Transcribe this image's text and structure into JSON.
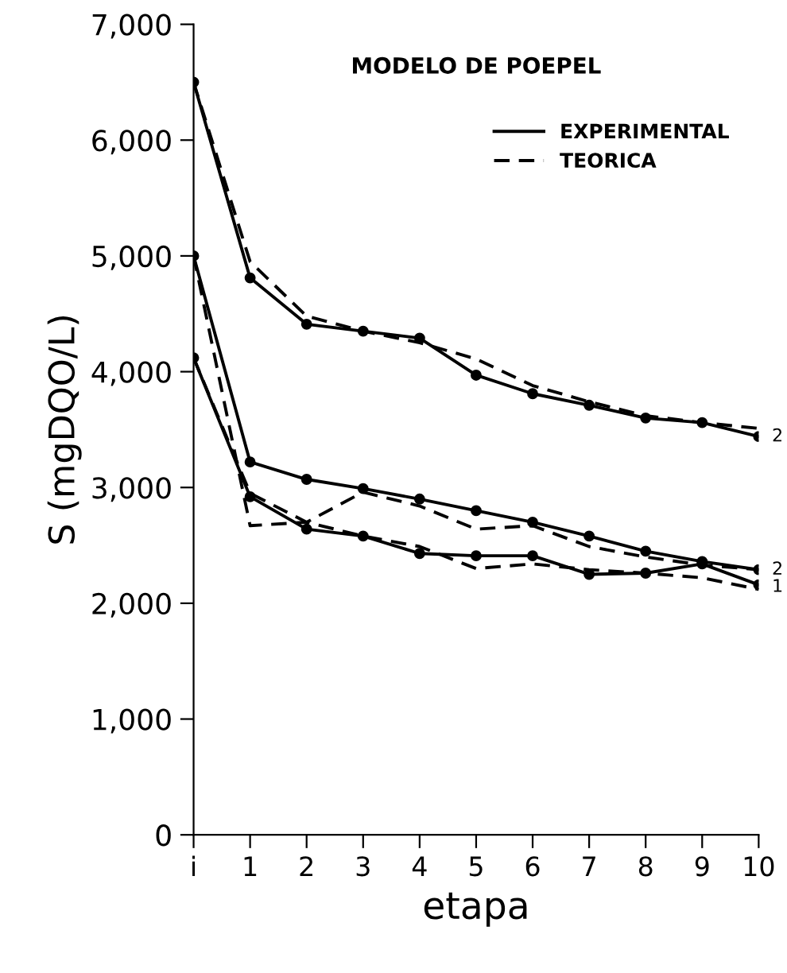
{
  "chart_data": {
    "type": "line",
    "title": "MODELO DE POEPEL",
    "xlabel": "etapa",
    "ylabel": "S (mgDQO/L)",
    "categories": [
      "i",
      "1",
      "2",
      "3",
      "4",
      "5",
      "6",
      "7",
      "8",
      "9",
      "10"
    ],
    "ylim": [
      0,
      7000
    ],
    "yticks": [
      {
        "value": 0,
        "label": "0"
      },
      {
        "value": 1000,
        "label": "1,000"
      },
      {
        "value": 2000,
        "label": "2,000"
      },
      {
        "value": 3000,
        "label": "3,000"
      },
      {
        "value": 4000,
        "label": "4,000"
      },
      {
        "value": 5000,
        "label": "5,000"
      },
      {
        "value": 6000,
        "label": "6,000"
      },
      {
        "value": 7000,
        "label": "7,000"
      }
    ],
    "grid": false,
    "legend": "top right",
    "series": [
      {
        "name": "EXPERIMENTAL",
        "color": "#000000",
        "line_style": "solid",
        "marker": "circle",
        "values": [
          6500,
          4810,
          4410,
          4350,
          4290,
          3970,
          3810,
          3710,
          3600,
          3560,
          3440
        ]
      },
      {
        "name": "TEORICA",
        "color": "#000000",
        "line_style": "dashed",
        "marker": "none",
        "values": [
          6500,
          4950,
          4480,
          4350,
          4250,
          4110,
          3880,
          3740,
          3620,
          3560,
          3510
        ]
      },
      {
        "color": "#000000",
        "line_style": "solid",
        "marker": "circle",
        "values": [
          5000,
          3220,
          3070,
          2990,
          2900,
          2800,
          2700,
          2580,
          2450,
          2360,
          2290
        ]
      },
      {
        "color": "#000000",
        "line_style": "dashed",
        "marker": "none",
        "values": [
          5000,
          2670,
          2700,
          2960,
          2840,
          2640,
          2670,
          2490,
          2400,
          2330,
          2290
        ]
      },
      {
        "color": "#000000",
        "line_style": "solid",
        "marker": "circle",
        "values": [
          4120,
          2920,
          2640,
          2580,
          2430,
          2410,
          2410,
          2250,
          2260,
          2340,
          2160
        ]
      },
      {
        "color": "#000000",
        "line_style": "dashed",
        "marker": "none",
        "values": [
          4120,
          2950,
          2700,
          2580,
          2490,
          2300,
          2340,
          2290,
          2260,
          2220,
          2120
        ]
      }
    ],
    "annotations": [
      {
        "text": "2",
        "x": "10",
        "y": 3440
      },
      {
        "text": "2",
        "x": "10",
        "y": 2290
      },
      {
        "text": "1",
        "x": "10",
        "y": 2140
      }
    ]
  }
}
